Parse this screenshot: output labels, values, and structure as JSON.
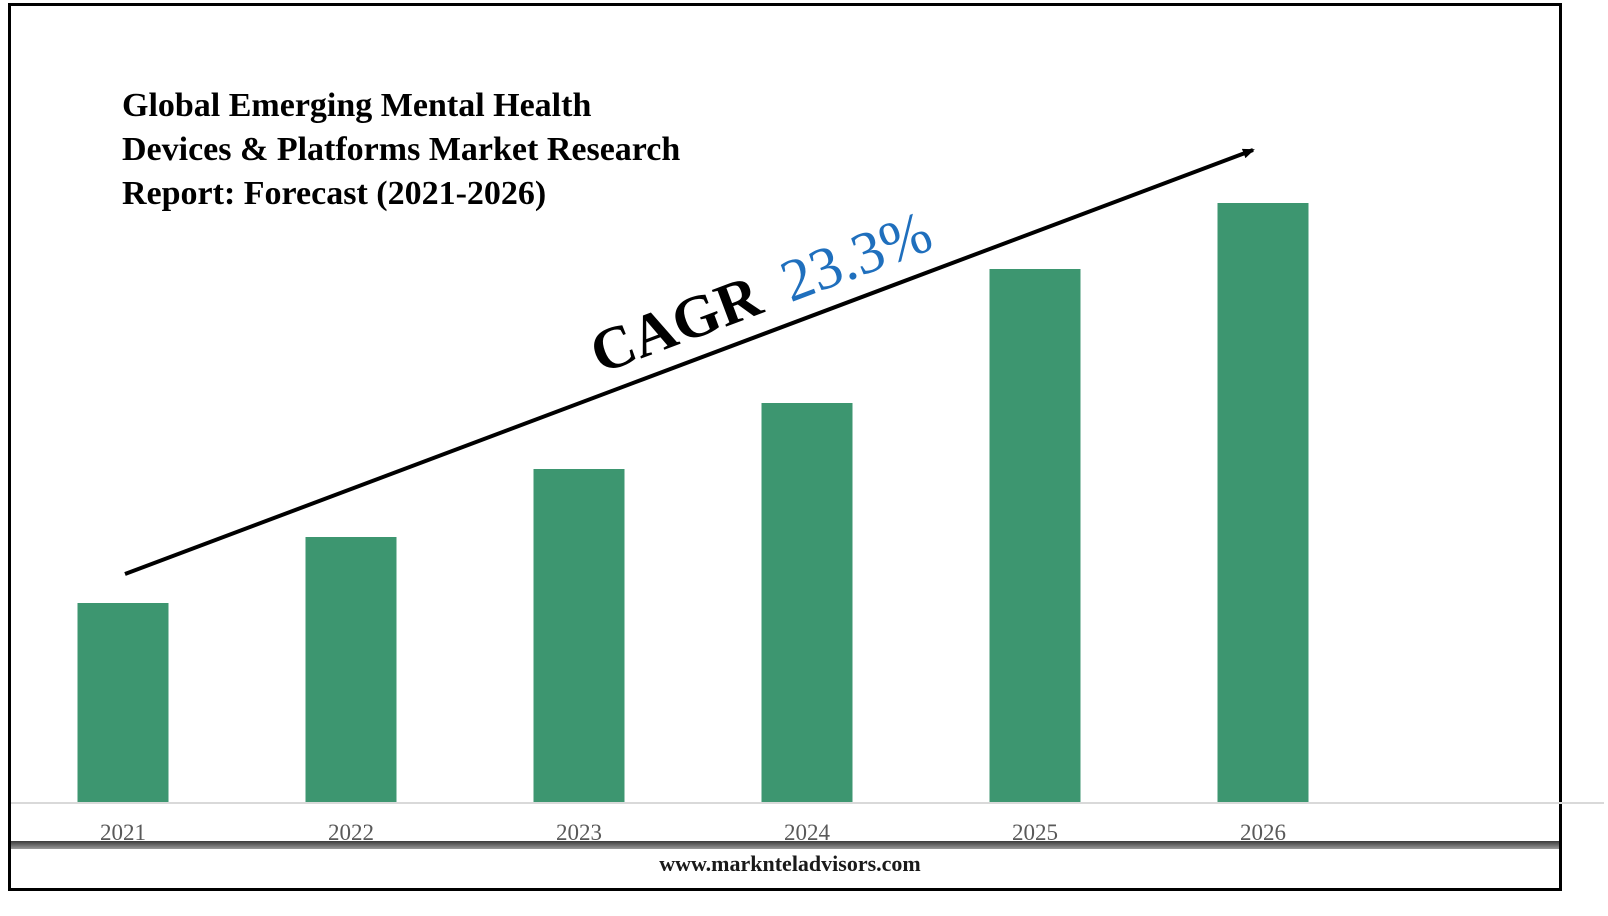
{
  "chart_data": {
    "type": "bar",
    "title_lines": [
      "Global Emerging Mental Health",
      "Devices & Platforms Market Research",
      "Report: Forecast (2021-2026)"
    ],
    "categories": [
      "2021",
      "2022",
      "2023",
      "2024",
      "2025",
      "2026"
    ],
    "values": [
      1.0,
      1.33,
      1.67,
      2.0,
      2.67,
      3.0
    ],
    "ylim": [
      0,
      3.35
    ],
    "grid": false,
    "legend": "none",
    "bar_color": "#3d9670",
    "annotation": {
      "label": "CAGR",
      "value": "23.3%",
      "label_color": "#000000",
      "value_color": "#1f6fbd"
    }
  },
  "footer": {
    "website": "www.marknteladvisors.com"
  }
}
